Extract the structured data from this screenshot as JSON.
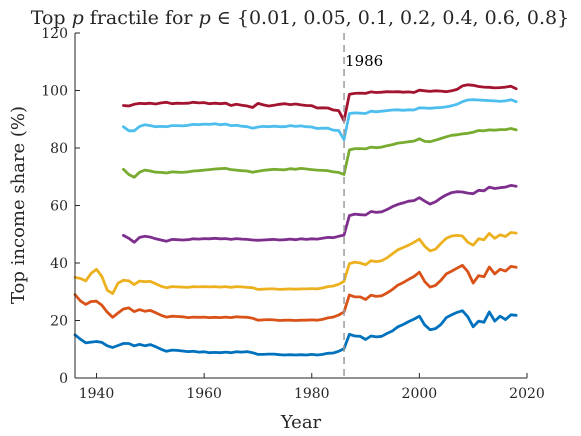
{
  "chart_data": {
    "type": "line",
    "title": "Top p fractile for p ∈ {0.01, 0.05, 0.1, 0.2, 0.4, 0.6, 0.8}",
    "title_parts": {
      "prefix": "Top ",
      "var1": "p",
      "mid": " fractile for ",
      "var2": "p",
      "set": " ∈ {0.01, 0.05, 0.1, 0.2, 0.4, 0.6, 0.8}"
    },
    "xlabel": "Year",
    "ylabel": "Top income share (%)",
    "xlim": [
      1936,
      2020
    ],
    "ylim": [
      0,
      120
    ],
    "xticks": [
      1940,
      1960,
      1980,
      2000,
      2020
    ],
    "yticks": [
      0,
      20,
      40,
      60,
      80,
      100,
      120
    ],
    "grid": false,
    "legend": "none",
    "annotation": {
      "x": 1986,
      "label": "1986"
    },
    "series": [
      {
        "color": "#0072BD",
        "x": [
          1936,
          1937,
          1938,
          1939,
          1940,
          1941,
          1942,
          1943,
          1944,
          1945,
          1946,
          1947,
          1948,
          1949,
          1950,
          1951,
          1952,
          1953,
          1954,
          1955,
          1956,
          1957,
          1958,
          1959,
          1960,
          1961,
          1962,
          1963,
          1964,
          1965,
          1966,
          1967,
          1968,
          1969,
          1970,
          1971,
          1972,
          1973,
          1974,
          1975,
          1976,
          1977,
          1978,
          1979,
          1980,
          1981,
          1982,
          1983,
          1984,
          1985,
          1986,
          1987,
          1988,
          1989,
          1990,
          1991,
          1992,
          1993,
          1994,
          1995,
          1996,
          1997,
          1998,
          1999,
          2000,
          2001,
          2002,
          2003,
          2004,
          2005,
          2006,
          2007,
          2008,
          2009,
          2010,
          2011,
          2012,
          2013,
          2014,
          2015,
          2016,
          2017,
          2018
        ],
        "values": [
          15,
          13.5,
          12.2,
          12.5,
          12.7,
          12.4,
          11.2,
          10.6,
          11.3,
          12,
          12,
          11.2,
          11.7,
          11.2,
          11.6,
          10.9,
          10,
          9.3,
          9.7,
          9.6,
          9.4,
          9.2,
          9.3,
          9.0,
          9.1,
          8.8,
          8.9,
          8.8,
          9.0,
          8.8,
          9.1,
          9.0,
          9.2,
          8.8,
          8.2,
          8.2,
          8.3,
          8.3,
          8.1,
          8.0,
          8.1,
          8.0,
          8.1,
          8.0,
          8.2,
          8.0,
          8.2,
          8.6,
          8.7,
          9.3,
          10.2,
          15.2,
          14.6,
          14.5,
          13.4,
          14.6,
          14.3,
          14.5,
          15.5,
          16.4,
          17.8,
          18.6,
          19.6,
          20.5,
          21.5,
          18.4,
          16.8,
          17.2,
          18.6,
          21.0,
          22.0,
          22.8,
          23.4,
          21.3,
          17.8,
          19.8,
          19.4,
          23.0,
          19.8,
          21.5,
          20.3,
          22.0,
          21.8
        ]
      },
      {
        "color": "#D95319",
        "x": [
          1936,
          1937,
          1938,
          1939,
          1940,
          1941,
          1942,
          1943,
          1944,
          1945,
          1946,
          1947,
          1948,
          1949,
          1950,
          1951,
          1952,
          1953,
          1954,
          1955,
          1956,
          1957,
          1958,
          1959,
          1960,
          1961,
          1962,
          1963,
          1964,
          1965,
          1966,
          1967,
          1968,
          1969,
          1970,
          1971,
          1972,
          1973,
          1974,
          1975,
          1976,
          1977,
          1978,
          1979,
          1980,
          1981,
          1982,
          1983,
          1984,
          1985,
          1986,
          1987,
          1988,
          1989,
          1990,
          1991,
          1992,
          1993,
          1994,
          1995,
          1996,
          1997,
          1998,
          1999,
          2000,
          2001,
          2002,
          2003,
          2004,
          2005,
          2006,
          2007,
          2008,
          2009,
          2010,
          2011,
          2012,
          2013,
          2014,
          2015,
          2016,
          2017,
          2018
        ],
        "values": [
          29,
          26.8,
          25.6,
          26.6,
          26.7,
          25.3,
          22.9,
          21.1,
          22.6,
          24,
          24.4,
          23.1,
          23.8,
          23.2,
          23.5,
          22.7,
          21.8,
          21.2,
          21.5,
          21.4,
          21.3,
          21.0,
          21.2,
          21.1,
          21.2,
          21.0,
          21.1,
          21.0,
          21.2,
          21.0,
          21.3,
          21.2,
          21.1,
          20.8,
          20.1,
          20.2,
          20.3,
          20.2,
          20.0,
          20.1,
          20.1,
          20.0,
          20.1,
          20.1,
          20.2,
          20.1,
          20.4,
          20.9,
          21.2,
          21.9,
          23.0,
          28.9,
          28.2,
          28.2,
          27.3,
          28.8,
          28.4,
          28.6,
          29.6,
          30.8,
          32.3,
          33.2,
          34.3,
          35.3,
          36.8,
          33.5,
          31.6,
          32.2,
          34.0,
          36.2,
          37.2,
          38.2,
          39.2,
          37.0,
          33.0,
          35.6,
          35.2,
          38.6,
          36.2,
          37.8,
          37.2,
          38.8,
          38.5
        ]
      },
      {
        "color": "#EDB120",
        "x": [
          1936,
          1937,
          1938,
          1939,
          1940,
          1941,
          1942,
          1943,
          1944,
          1945,
          1946,
          1947,
          1948,
          1949,
          1950,
          1951,
          1952,
          1953,
          1954,
          1955,
          1956,
          1957,
          1958,
          1959,
          1960,
          1961,
          1962,
          1963,
          1964,
          1965,
          1966,
          1967,
          1968,
          1969,
          1970,
          1971,
          1972,
          1973,
          1974,
          1975,
          1976,
          1977,
          1978,
          1979,
          1980,
          1981,
          1982,
          1983,
          1984,
          1985,
          1986,
          1987,
          1988,
          1989,
          1990,
          1991,
          1992,
          1993,
          1994,
          1995,
          1996,
          1997,
          1998,
          1999,
          2000,
          2001,
          2002,
          2003,
          2004,
          2005,
          2006,
          2007,
          2008,
          2009,
          2010,
          2011,
          2012,
          2013,
          2014,
          2015,
          2016,
          2017,
          2018
        ],
        "values": [
          35,
          34.6,
          33.8,
          36.4,
          37.8,
          35.3,
          30.5,
          29.4,
          33,
          34,
          33.8,
          32.5,
          33.7,
          33.5,
          33.6,
          32.8,
          31.9,
          31.4,
          31.8,
          31.7,
          31.6,
          31.5,
          31.8,
          31.7,
          31.8,
          31.7,
          31.8,
          31.6,
          31.8,
          31.5,
          31.8,
          31.7,
          31.5,
          31.4,
          30.8,
          30.9,
          31.0,
          31.0,
          30.8,
          30.9,
          31.0,
          30.9,
          31.0,
          31.0,
          31.1,
          31.0,
          31.3,
          31.8,
          32.0,
          32.6,
          33.6,
          39.8,
          40.3,
          40.0,
          39.4,
          40.8,
          40.5,
          40.8,
          41.8,
          43.2,
          44.6,
          45.4,
          46.2,
          47.2,
          48.3,
          45.8,
          44.2,
          44.8,
          46.8,
          48.6,
          49.4,
          49.6,
          49.4,
          47.2,
          46.2,
          48.4,
          48.1,
          50.3,
          48.6,
          49.8,
          49.2,
          50.6,
          50.4
        ]
      },
      {
        "color": "#7E2F8E",
        "x": [
          1945,
          1946,
          1947,
          1948,
          1949,
          1950,
          1951,
          1952,
          1953,
          1954,
          1955,
          1956,
          1957,
          1958,
          1959,
          1960,
          1961,
          1962,
          1963,
          1964,
          1965,
          1966,
          1967,
          1968,
          1969,
          1970,
          1971,
          1972,
          1973,
          1974,
          1975,
          1976,
          1977,
          1978,
          1979,
          1980,
          1981,
          1982,
          1983,
          1984,
          1985,
          1986,
          1987,
          1988,
          1989,
          1990,
          1991,
          1992,
          1993,
          1994,
          1995,
          1996,
          1997,
          1998,
          1999,
          2000,
          2001,
          2002,
          2003,
          2004,
          2005,
          2006,
          2007,
          2008,
          2009,
          2010,
          2011,
          2012,
          2013,
          2014,
          2015,
          2016,
          2017,
          2018
        ],
        "values": [
          49.6,
          48.6,
          47.2,
          48.9,
          49.3,
          49.0,
          48.4,
          48.0,
          47.6,
          48.2,
          48.1,
          48.0,
          48.1,
          48.4,
          48.3,
          48.5,
          48.4,
          48.6,
          48.4,
          48.5,
          48.2,
          48.5,
          48.3,
          48.2,
          48.0,
          47.9,
          48.0,
          48.1,
          48.2,
          48.0,
          48.1,
          48.3,
          48.1,
          48.4,
          48.2,
          48.4,
          48.3,
          48.6,
          48.9,
          48.8,
          49.3,
          49.7,
          56.5,
          57.0,
          56.8,
          56.7,
          57.9,
          57.6,
          57.8,
          58.6,
          59.6,
          60.4,
          60.9,
          61.5,
          61.7,
          62.7,
          61.5,
          60.5,
          61.3,
          62.6,
          63.7,
          64.5,
          64.8,
          64.7,
          64.3,
          64.1,
          65.3,
          65.1,
          66.4,
          65.9,
          66.2,
          66.4,
          67.0,
          66.7
        ]
      },
      {
        "color": "#77AC30",
        "x": [
          1945,
          1946,
          1947,
          1948,
          1949,
          1950,
          1951,
          1952,
          1953,
          1954,
          1955,
          1956,
          1957,
          1958,
          1959,
          1960,
          1961,
          1962,
          1963,
          1964,
          1965,
          1966,
          1967,
          1968,
          1969,
          1970,
          1971,
          1972,
          1973,
          1974,
          1975,
          1976,
          1977,
          1978,
          1979,
          1980,
          1981,
          1982,
          1983,
          1984,
          1985,
          1986,
          1987,
          1988,
          1989,
          1990,
          1991,
          1992,
          1993,
          1994,
          1995,
          1996,
          1997,
          1998,
          1999,
          2000,
          2001,
          2002,
          2003,
          2004,
          2005,
          2006,
          2007,
          2008,
          2009,
          2010,
          2011,
          2012,
          2013,
          2014,
          2015,
          2016,
          2017,
          2018
        ],
        "values": [
          72.6,
          70.8,
          69.8,
          71.6,
          72.3,
          72.0,
          71.6,
          71.5,
          71.3,
          71.7,
          71.6,
          71.5,
          71.7,
          72.0,
          72.1,
          72.3,
          72.5,
          72.7,
          72.8,
          72.9,
          72.5,
          72.3,
          72.1,
          72.0,
          71.6,
          71.9,
          72.2,
          72.4,
          72.6,
          72.5,
          72.4,
          72.8,
          72.6,
          72.9,
          72.7,
          72.5,
          72.3,
          72.2,
          72.1,
          71.7,
          71.5,
          70.8,
          79.3,
          79.8,
          79.8,
          79.7,
          80.3,
          80.1,
          80.3,
          80.8,
          81.2,
          81.7,
          81.9,
          82.2,
          82.4,
          83.2,
          82.3,
          82.2,
          82.7,
          83.3,
          83.9,
          84.4,
          84.6,
          84.9,
          85.1,
          85.5,
          86.1,
          86.0,
          86.3,
          86.2,
          86.4,
          86.4,
          86.8,
          86.3
        ]
      },
      {
        "color": "#4DBEEE",
        "x": [
          1945,
          1946,
          1947,
          1948,
          1949,
          1950,
          1951,
          1952,
          1953,
          1954,
          1955,
          1956,
          1957,
          1958,
          1959,
          1960,
          1961,
          1962,
          1963,
          1964,
          1965,
          1966,
          1967,
          1968,
          1969,
          1970,
          1971,
          1972,
          1973,
          1974,
          1975,
          1976,
          1977,
          1978,
          1979,
          1980,
          1981,
          1982,
          1983,
          1984,
          1985,
          1986,
          1987,
          1988,
          1989,
          1990,
          1991,
          1992,
          1993,
          1994,
          1995,
          1996,
          1997,
          1998,
          1999,
          2000,
          2001,
          2002,
          2003,
          2004,
          2005,
          2006,
          2007,
          2008,
          2009,
          2010,
          2011,
          2012,
          2013,
          2014,
          2015,
          2016,
          2017,
          2018
        ],
        "values": [
          87.4,
          86.0,
          86.0,
          87.5,
          88.1,
          87.8,
          87.4,
          87.5,
          87.4,
          87.8,
          87.8,
          87.7,
          87.9,
          88.2,
          88.1,
          88.3,
          88.2,
          88.4,
          88.1,
          88.3,
          87.8,
          87.9,
          87.6,
          87.4,
          86.9,
          87.3,
          87.5,
          87.4,
          87.6,
          87.4,
          87.4,
          87.8,
          87.5,
          87.7,
          87.4,
          87.3,
          86.8,
          86.9,
          86.9,
          86.2,
          86.1,
          82.9,
          92.0,
          92.2,
          92.1,
          92.0,
          92.8,
          92.6,
          92.8,
          93.0,
          93.2,
          93.3,
          93.1,
          93.3,
          93.2,
          94.0,
          93.9,
          93.8,
          94.0,
          94.1,
          94.3,
          94.7,
          95.2,
          96.1,
          96.7,
          96.8,
          96.7,
          96.6,
          96.5,
          96.4,
          96.2,
          96.4,
          96.8,
          96.1
        ]
      },
      {
        "color": "#A2142F",
        "x": [
          1945,
          1946,
          1947,
          1948,
          1949,
          1950,
          1951,
          1952,
          1953,
          1954,
          1955,
          1956,
          1957,
          1958,
          1959,
          1960,
          1961,
          1962,
          1963,
          1964,
          1965,
          1966,
          1967,
          1968,
          1969,
          1970,
          1971,
          1972,
          1973,
          1974,
          1975,
          1976,
          1977,
          1978,
          1979,
          1980,
          1981,
          1982,
          1983,
          1984,
          1985,
          1986,
          1987,
          1988,
          1989,
          1990,
          1991,
          1992,
          1993,
          1994,
          1995,
          1996,
          1997,
          1998,
          1999,
          2000,
          2001,
          2002,
          2003,
          2004,
          2005,
          2006,
          2007,
          2008,
          2009,
          2010,
          2011,
          2012,
          2013,
          2014,
          2015,
          2016,
          2017,
          2018
        ],
        "values": [
          94.8,
          94.6,
          95.2,
          95.5,
          95.4,
          95.6,
          95.3,
          95.7,
          95.9,
          95.4,
          95.6,
          95.5,
          95.6,
          95.9,
          95.7,
          95.8,
          95.4,
          95.6,
          95.4,
          95.6,
          94.8,
          95.2,
          94.9,
          94.6,
          94.1,
          95.5,
          95.0,
          94.6,
          94.9,
          95.2,
          95.4,
          95.1,
          95.3,
          95.0,
          94.8,
          94.7,
          93.9,
          94.0,
          93.9,
          93.2,
          93.0,
          89.5,
          98.7,
          99.0,
          99.1,
          99.0,
          99.5,
          99.3,
          99.4,
          99.6,
          99.5,
          99.6,
          99.4,
          99.5,
          99.3,
          100.1,
          99.9,
          99.7,
          99.9,
          99.8,
          99.6,
          99.9,
          100.4,
          101.6,
          102.0,
          101.8,
          101.4,
          101.2,
          101.1,
          100.9,
          101.0,
          101.2,
          101.5,
          100.6
        ]
      }
    ]
  }
}
